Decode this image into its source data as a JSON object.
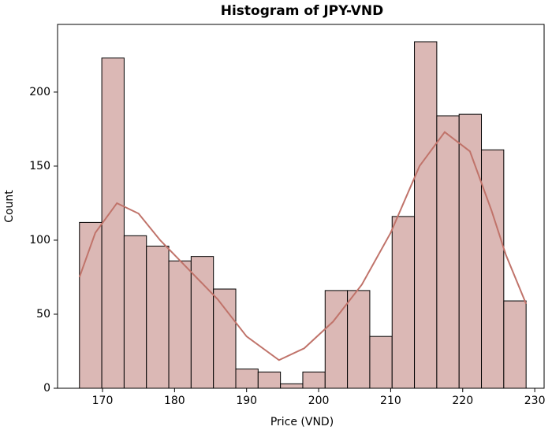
{
  "chart_data": {
    "type": "histogram",
    "title": "Histogram of JPY-VND",
    "x_label": "Price (VND)",
    "y_label": "Count",
    "bins": [
      166.8,
      169.9,
      173.0,
      176.1,
      179.2,
      182.3,
      185.4,
      188.5,
      191.6,
      194.7,
      197.8,
      200.9,
      204.0,
      207.1,
      210.2,
      213.3,
      216.4,
      219.5,
      222.6,
      225.7,
      228.8
    ],
    "values": [
      112,
      223,
      103,
      96,
      86,
      89,
      67,
      13,
      11,
      3,
      11,
      66,
      66,
      35,
      116,
      234,
      184,
      185,
      161,
      59
    ],
    "color": "#dbb8b5",
    "edge_color": "#000000",
    "kde": {
      "color": "#c0736a",
      "x": [
        166.8,
        169,
        172,
        175,
        178,
        182,
        186,
        190,
        194.5,
        198,
        202,
        206,
        210,
        214,
        217.5,
        221,
        224,
        226,
        228.8
      ],
      "values": [
        75,
        105,
        125,
        118,
        100,
        80,
        60,
        35,
        19,
        27,
        45,
        70,
        105,
        150,
        173,
        160,
        120,
        90,
        57
      ]
    },
    "xlim": [
      163.76,
      231.3
    ],
    "ylim": [
      0,
      245.7
    ],
    "xticks": [
      170,
      180,
      190,
      200,
      210,
      220,
      230
    ],
    "yticks": [
      0,
      50,
      100,
      150,
      200
    ]
  }
}
